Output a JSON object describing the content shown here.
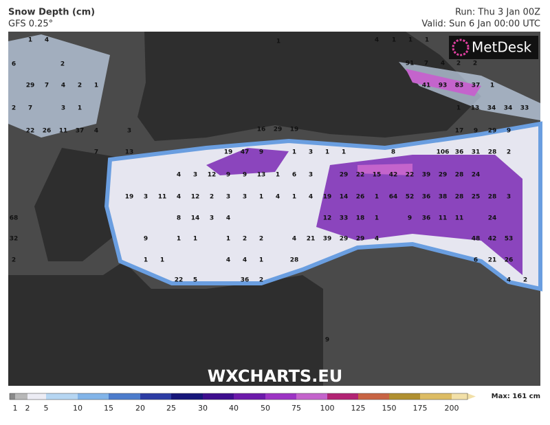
{
  "header": {
    "title": "Snow Depth (cm)",
    "model": "GFS 0.25°",
    "run": "Run: Thu 3 Jan 00Z",
    "valid": "Valid: Sun 6 Jan 00:00 UTC"
  },
  "map": {
    "brand": "MetDesk",
    "watermark": "WXCHARTS.EU",
    "labels": [
      1,
      4,
      1,
      4,
      1,
      1,
      1,
      2,
      6,
      91,
      7,
      4,
      2,
      2,
      29,
      7,
      4,
      2,
      1,
      41,
      93,
      83,
      37,
      1,
      2,
      7,
      3,
      1,
      1,
      13,
      34,
      34,
      33,
      22,
      26,
      11,
      37,
      4,
      3,
      16,
      29,
      19,
      17,
      9,
      29,
      9,
      7,
      13,
      19,
      47,
      9,
      1,
      3,
      1,
      1,
      8,
      106,
      36,
      31,
      28,
      2,
      4,
      3,
      12,
      9,
      9,
      13,
      1,
      6,
      3,
      29,
      22,
      15,
      42,
      22,
      39,
      29,
      28,
      24,
      19,
      3,
      11,
      4,
      12,
      2,
      3,
      3,
      1,
      4,
      1,
      4,
      19,
      14,
      26,
      1,
      64,
      52,
      36,
      38,
      28,
      25,
      28,
      3,
      68,
      8,
      14,
      3,
      4,
      12,
      33,
      18,
      1,
      9,
      36,
      11,
      11,
      24,
      32,
      9,
      1,
      1,
      1,
      2,
      2,
      4,
      21,
      39,
      29,
      29,
      4,
      48,
      42,
      53,
      2,
      1,
      1,
      4,
      4,
      1,
      28,
      6,
      21,
      26,
      22,
      5,
      36,
      2,
      4,
      2,
      9
    ]
  },
  "legend": {
    "ticks": [
      1,
      2,
      5,
      10,
      15,
      20,
      25,
      30,
      40,
      50,
      75,
      100,
      125,
      150,
      175,
      200
    ],
    "colors": [
      "#8a8a8a",
      "#b8b8b8",
      "#ececf4",
      "#b6d6f2",
      "#82b4e8",
      "#4c7ccc",
      "#2c3ca4",
      "#16167a",
      "#3e0e8e",
      "#6c1aaa",
      "#9c34c4",
      "#c464cc",
      "#b22474",
      "#c86444",
      "#b09030",
      "#dcbc64",
      "#f2e0a8"
    ],
    "max": "Max: 161 cm"
  }
}
